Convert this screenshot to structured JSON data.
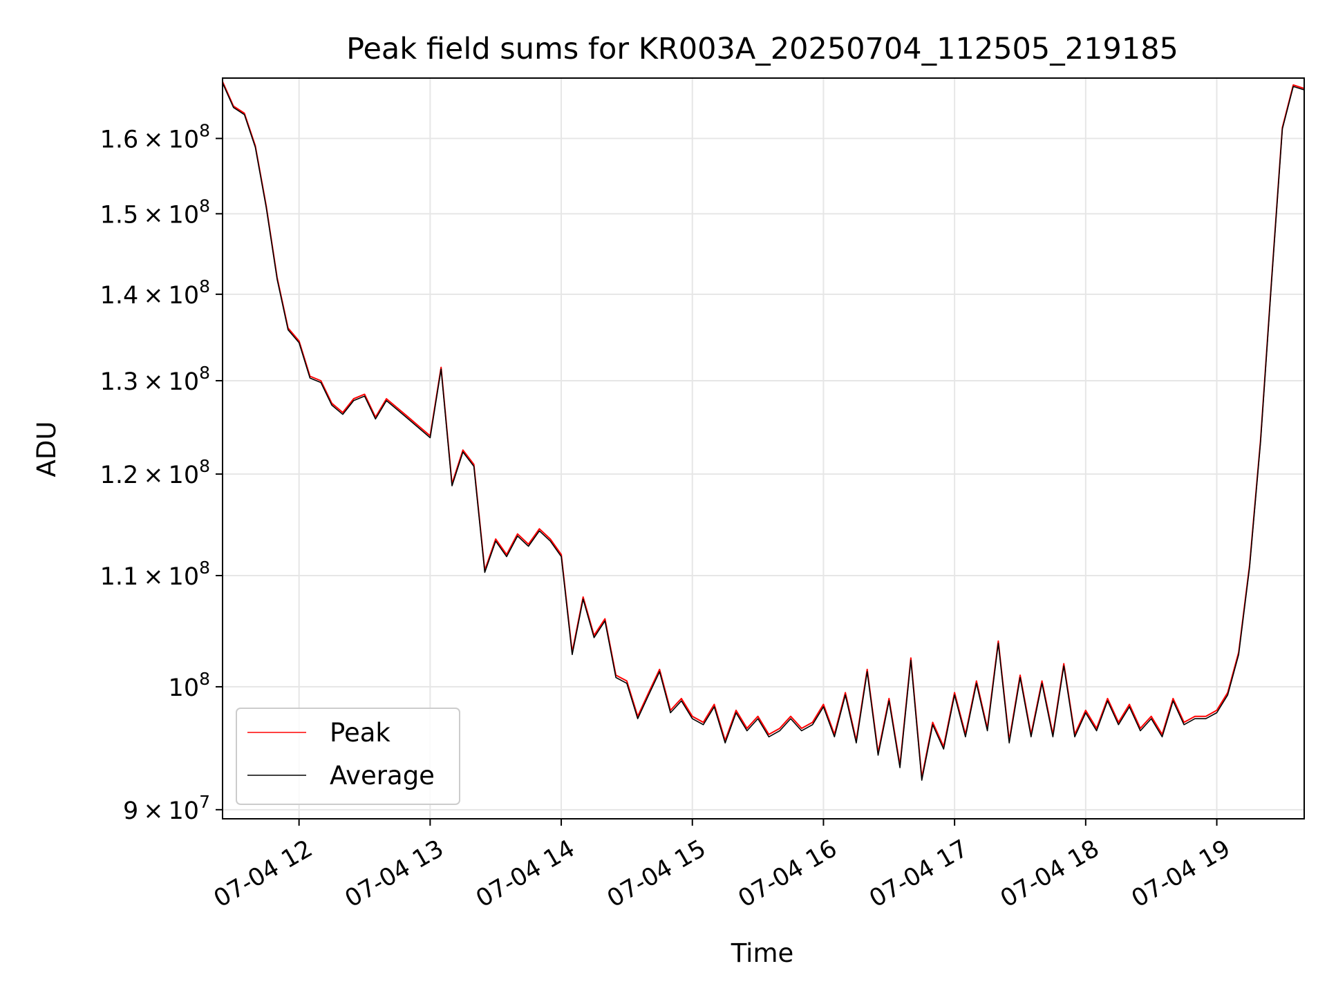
{
  "chart_data": {
    "type": "line",
    "title": "Peak field sums for KR003A_20250704_112505_219185",
    "xlabel": "Time",
    "ylabel": "ADU",
    "yscale": "log",
    "grid": true,
    "legend_position": "lower-left",
    "x_tick_labels": [
      "07-04 12",
      "07-04 13",
      "07-04 14",
      "07-04 15",
      "07-04 16",
      "07-04 17",
      "07-04 18",
      "07-04 19"
    ],
    "y_ticks": [
      {
        "value": 90000000,
        "mantissa": "9",
        "exponent": "7"
      },
      {
        "value": 100000000,
        "mantissa": "",
        "exponent": "8"
      },
      {
        "value": 110000000,
        "mantissa": "1.1",
        "exponent": "8"
      },
      {
        "value": 120000000,
        "mantissa": "1.2",
        "exponent": "8"
      },
      {
        "value": 130000000,
        "mantissa": "1.3",
        "exponent": "8"
      },
      {
        "value": 140000000,
        "mantissa": "1.4",
        "exponent": "8"
      },
      {
        "value": 150000000,
        "mantissa": "1.5",
        "exponent": "8"
      },
      {
        "value": 160000000,
        "mantissa": "1.6",
        "exponent": "8"
      }
    ],
    "xlim": [
      "2025-07-04 11:25",
      "2025-07-04 19:40"
    ],
    "ylim": [
      89300000,
      168500000
    ],
    "series": [
      {
        "name": "Peak",
        "color": "#ff0000",
        "x": [
          "11:25",
          "11:30",
          "11:35",
          "11:40",
          "11:45",
          "11:50",
          "11:55",
          "12:00",
          "12:05",
          "12:10",
          "12:15",
          "12:20",
          "12:25",
          "12:30",
          "12:35",
          "12:40",
          "12:45",
          "12:50",
          "12:55",
          "13:00",
          "13:05",
          "13:10",
          "13:15",
          "13:20",
          "13:25",
          "13:30",
          "13:35",
          "13:40",
          "13:45",
          "13:50",
          "13:55",
          "14:00",
          "14:05",
          "14:10",
          "14:15",
          "14:20",
          "14:25",
          "14:30",
          "14:35",
          "14:40",
          "14:45",
          "14:50",
          "14:55",
          "15:00",
          "15:05",
          "15:10",
          "15:15",
          "15:20",
          "15:25",
          "15:30",
          "15:35",
          "15:40",
          "15:45",
          "15:50",
          "15:55",
          "16:00",
          "16:05",
          "16:10",
          "16:15",
          "16:20",
          "16:25",
          "16:30",
          "16:35",
          "16:40",
          "16:45",
          "16:50",
          "16:55",
          "17:00",
          "17:05",
          "17:10",
          "17:15",
          "17:20",
          "17:25",
          "17:30",
          "17:35",
          "17:40",
          "17:45",
          "17:50",
          "17:55",
          "18:00",
          "18:05",
          "18:10",
          "18:15",
          "18:20",
          "18:25",
          "18:30",
          "18:35",
          "18:40",
          "18:45",
          "18:50",
          "18:55",
          "19:00",
          "19:05",
          "19:10",
          "19:15",
          "19:20",
          "19:25",
          "19:30",
          "19:35",
          "19:40"
        ],
        "y": [
          168000000,
          164500000,
          163500000,
          159000000,
          151000000,
          142000000,
          136000000,
          134500000,
          130500000,
          130000000,
          127500000,
          126500000,
          128000000,
          128500000,
          126000000,
          128000000,
          127000000,
          126000000,
          125000000,
          124000000,
          131500000,
          119000000,
          122500000,
          121000000,
          110500000,
          113500000,
          112000000,
          114000000,
          113000000,
          114500000,
          113500000,
          112000000,
          103000000,
          108000000,
          104500000,
          106000000,
          101000000,
          100500000,
          97500000,
          99500000,
          101500000,
          98000000,
          99000000,
          97500000,
          97000000,
          98500000,
          95500000,
          98000000,
          96500000,
          97500000,
          96000000,
          96500000,
          97500000,
          96500000,
          97000000,
          98500000,
          96000000,
          99500000,
          95500000,
          101500000,
          94500000,
          99000000,
          93500000,
          102500000,
          92500000,
          97000000,
          95000000,
          99500000,
          96000000,
          100500000,
          96500000,
          104000000,
          95500000,
          101000000,
          96000000,
          100500000,
          96000000,
          102000000,
          96000000,
          98000000,
          96500000,
          99000000,
          97000000,
          98500000,
          96500000,
          97500000,
          96000000,
          99000000,
          97000000,
          97500000,
          97500000,
          98000000,
          99500000,
          103000000,
          111000000,
          123500000,
          141500000,
          161500000,
          167500000,
          167000000
        ]
      },
      {
        "name": "Average",
        "color": "#000000",
        "x": [
          "11:25",
          "11:30",
          "11:35",
          "11:40",
          "11:45",
          "11:50",
          "11:55",
          "12:00",
          "12:05",
          "12:10",
          "12:15",
          "12:20",
          "12:25",
          "12:30",
          "12:35",
          "12:40",
          "12:45",
          "12:50",
          "12:55",
          "13:00",
          "13:05",
          "13:10",
          "13:15",
          "13:20",
          "13:25",
          "13:30",
          "13:35",
          "13:40",
          "13:45",
          "13:50",
          "13:55",
          "14:00",
          "14:05",
          "14:10",
          "14:15",
          "14:20",
          "14:25",
          "14:30",
          "14:35",
          "14:40",
          "14:45",
          "14:50",
          "14:55",
          "15:00",
          "15:05",
          "15:10",
          "15:15",
          "15:20",
          "15:25",
          "15:30",
          "15:35",
          "15:40",
          "15:45",
          "15:50",
          "15:55",
          "16:00",
          "16:05",
          "16:10",
          "16:15",
          "16:20",
          "16:25",
          "16:30",
          "16:35",
          "16:40",
          "16:45",
          "16:50",
          "16:55",
          "17:00",
          "17:05",
          "17:10",
          "17:15",
          "17:20",
          "17:25",
          "17:30",
          "17:35",
          "17:40",
          "17:45",
          "17:50",
          "17:55",
          "18:00",
          "18:05",
          "18:10",
          "18:15",
          "18:20",
          "18:25",
          "18:30",
          "18:35",
          "18:40",
          "18:45",
          "18:50",
          "18:55",
          "19:00",
          "19:05",
          "19:10",
          "19:15",
          "19:20",
          "19:25",
          "19:30",
          "19:35",
          "19:40"
        ],
        "y": [
          167800000,
          164300000,
          163300000,
          158800000,
          150800000,
          141800000,
          135800000,
          134300000,
          130300000,
          129800000,
          127300000,
          126300000,
          127800000,
          128300000,
          125800000,
          127800000,
          126800000,
          125800000,
          124800000,
          123800000,
          131300000,
          118800000,
          122300000,
          120800000,
          110300000,
          113300000,
          111800000,
          113800000,
          112800000,
          114300000,
          113300000,
          111800000,
          102800000,
          107800000,
          104300000,
          105800000,
          100800000,
          100300000,
          97300000,
          99300000,
          101300000,
          97800000,
          98800000,
          97300000,
          96800000,
          98300000,
          95300000,
          97800000,
          96300000,
          97300000,
          95800000,
          96300000,
          97300000,
          96300000,
          96800000,
          98300000,
          95800000,
          99300000,
          95300000,
          101300000,
          94300000,
          98800000,
          93300000,
          102300000,
          92300000,
          96800000,
          94800000,
          99300000,
          95800000,
          100300000,
          96300000,
          103800000,
          95300000,
          100800000,
          95800000,
          100300000,
          95800000,
          101800000,
          95800000,
          97800000,
          96300000,
          98800000,
          96800000,
          98300000,
          96300000,
          97300000,
          95800000,
          98800000,
          96800000,
          97300000,
          97300000,
          97800000,
          99300000,
          102800000,
          110800000,
          123300000,
          141300000,
          161300000,
          167300000,
          166800000
        ]
      }
    ]
  }
}
